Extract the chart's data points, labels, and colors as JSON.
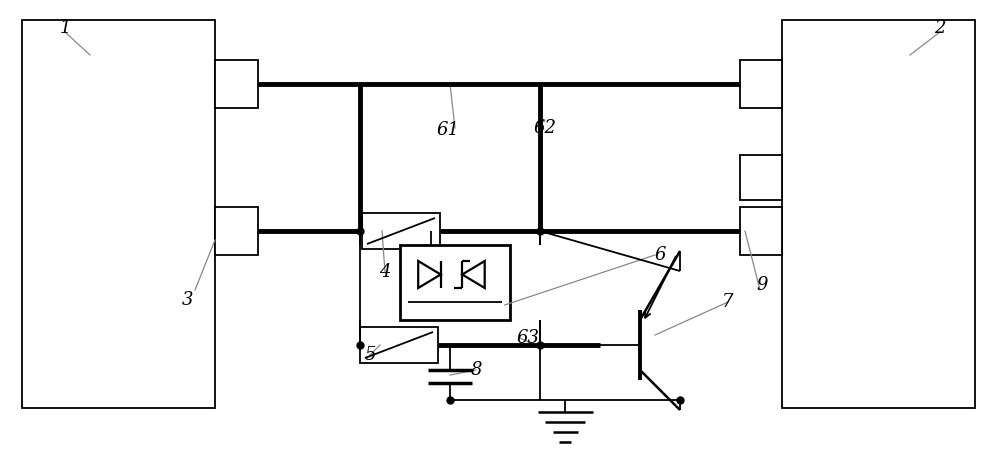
{
  "bg_color": "#ffffff",
  "line_color": "#000000",
  "thick_lw": 3.5,
  "thin_lw": 1.3,
  "fig_w": 10.0,
  "fig_h": 4.73,
  "dpi": 100
}
